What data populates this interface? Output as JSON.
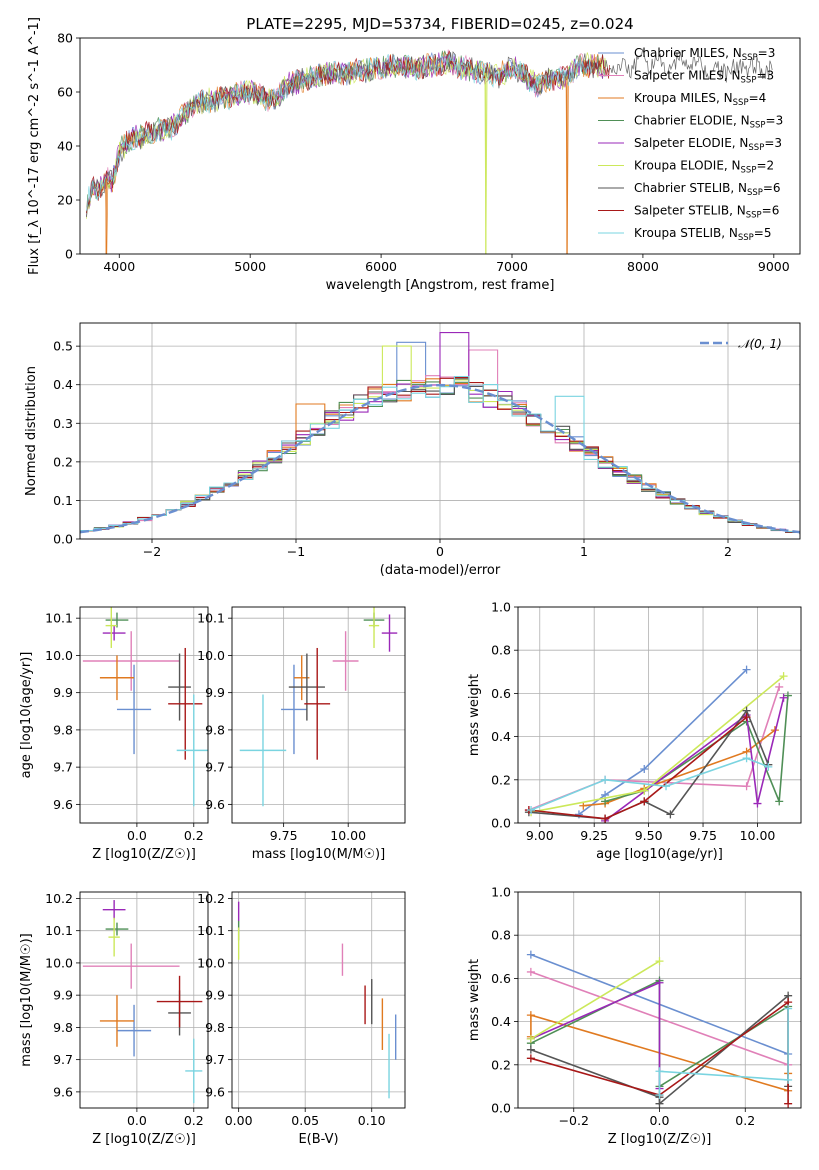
{
  "title": "PLATE=2295, MJD=53734, FIBERID=0245, z=0.024",
  "colors": {
    "c_ch_miles": "#6a8fd0",
    "c_sa_miles": "#e080b8",
    "c_kr_miles": "#e07a20",
    "c_ch_elodie": "#4f8f56",
    "c_sa_elodie": "#9a28b8",
    "c_kr_elodie": "#cce85a",
    "c_ch_stelib": "#555555",
    "c_sa_stelib": "#a81818",
    "c_kr_stelib": "#7ad4e0"
  },
  "chart_data": [
    {
      "type": "line",
      "id": "spectrum",
      "title": "PLATE=2295, MJD=53734, FIBERID=0245, z=0.024",
      "xlabel": "wavelength [Angstrom, rest frame]",
      "ylabel": "Flux [f_λ 10^-17 erg cm^-2 s^-1 A^-1]",
      "xlim": [
        3700,
        9200
      ],
      "ylim": [
        0,
        80
      ],
      "xticks": [
        4000,
        5000,
        6000,
        7000,
        8000,
        9000
      ],
      "yticks": [
        0,
        20,
        40,
        60,
        80
      ],
      "legend": "upper right",
      "series": [
        {
          "name": "Chabrier MILES, N_SSP=3",
          "color": "#6a8fd0"
        },
        {
          "name": "Salpeter MILES, N_SSP=3",
          "color": "#e080b8"
        },
        {
          "name": "Kroupa MILES, N_SSP=4",
          "color": "#e07a20"
        },
        {
          "name": "Chabrier ELODIE, N_SSP=3",
          "color": "#4f8f56"
        },
        {
          "name": "Salpeter ELODIE, N_SSP=3",
          "color": "#9a28b8"
        },
        {
          "name": "Kroupa ELODIE, N_SSP=2",
          "color": "#cce85a"
        },
        {
          "name": "Chabrier STELIB, N_SSP=6",
          "color": "#555555"
        },
        {
          "name": "Salpeter STELIB, N_SSP=6",
          "color": "#a81818"
        },
        {
          "name": "Kroupa STELIB, N_SSP=5",
          "color": "#7ad4e0"
        }
      ],
      "continuum": {
        "x": [
          3750,
          3800,
          3850,
          3900,
          3950,
          4000,
          4100,
          4200,
          4300,
          4400,
          4500,
          4600,
          4800,
          5000,
          5150,
          5200,
          5300,
          5500,
          5700,
          5900,
          6100,
          6300,
          6500,
          6700,
          6900,
          7000,
          7100,
          7200,
          7300,
          7400,
          7500,
          7600,
          7800,
          8000,
          8200,
          8400,
          8600,
          8800,
          9000
        ],
        "y": [
          18,
          25,
          24,
          28,
          27,
          38,
          43,
          44,
          46,
          47,
          52,
          56,
          58,
          60,
          57,
          58,
          63,
          66,
          67,
          68,
          70,
          69,
          71,
          68,
          66,
          69,
          66,
          62,
          65,
          65,
          69,
          70,
          69,
          71,
          70,
          71,
          68,
          69,
          68
        ]
      },
      "dropouts": [
        {
          "x": 3900,
          "color": "#e07a20"
        },
        {
          "x": 6800,
          "color": "#cce85a"
        },
        {
          "x": 7420,
          "color": "#e07a20"
        }
      ]
    },
    {
      "type": "histogram",
      "id": "residuals",
      "xlabel": "(data-model)/error",
      "ylabel": "Normed distribution",
      "xlim": [
        -2.5,
        2.5
      ],
      "ylim": [
        0,
        0.56
      ],
      "xticks": [
        -2,
        -1,
        0,
        1,
        2
      ],
      "xticklabels": [
        "−2",
        "−1",
        "0",
        "1",
        "2"
      ],
      "yticks": [
        0.0,
        0.1,
        0.2,
        0.3,
        0.4,
        0.5
      ],
      "bin_width": 0.1,
      "reference": {
        "name": "𝒩(0, 1)",
        "type": "normal",
        "mean": 0,
        "sigma": 1,
        "color": "#6a8fd0",
        "style": "dashed"
      },
      "legend": "upper right",
      "series_colors": [
        "#6a8fd0",
        "#e080b8",
        "#e07a20",
        "#4f8f56",
        "#9a28b8",
        "#cce85a",
        "#555555",
        "#a81818",
        "#7ad4e0"
      ],
      "highlight_bins": [
        {
          "series": 0,
          "x": -0.2,
          "value": 0.51
        },
        {
          "series": 4,
          "x": 0.1,
          "value": 0.535
        },
        {
          "series": 5,
          "x": -0.3,
          "value": 0.5
        },
        {
          "series": 1,
          "x": 0.3,
          "value": 0.49
        },
        {
          "series": 2,
          "x": -0.9,
          "value": 0.35
        },
        {
          "series": 8,
          "x": 0.9,
          "value": 0.37
        }
      ]
    },
    {
      "type": "errorbar",
      "id": "age_vs_Z",
      "xlabel": "Z [log10(Z/Z☉)]",
      "ylabel": "age [log10(age/yr)]",
      "xlim": [
        -0.2,
        0.25
      ],
      "ylim": [
        9.55,
        10.13
      ],
      "xticks": [
        0.0,
        0.2
      ],
      "xticklabels": [
        "0.0",
        "0.2"
      ],
      "yticks": [
        9.6,
        9.7,
        9.8,
        9.9,
        10.0,
        10.1
      ],
      "points": [
        {
          "c": "#6a8fd0",
          "x": -0.01,
          "y": 9.855,
          "xerr": 0.06,
          "yerr": 0.12
        },
        {
          "c": "#e080b8",
          "x": -0.02,
          "y": 9.985,
          "xerr": 0.17,
          "yerr": 0.08
        },
        {
          "c": "#e07a20",
          "x": -0.07,
          "y": 9.94,
          "xerr": 0.06,
          "yerr": 0.06
        },
        {
          "c": "#4f8f56",
          "x": -0.07,
          "y": 10.095,
          "xerr": 0.04,
          "yerr": 0.02
        },
        {
          "c": "#9a28b8",
          "x": -0.08,
          "y": 10.06,
          "xerr": 0.04,
          "yerr": 0.02
        },
        {
          "c": "#cce85a",
          "x": -0.09,
          "y": 10.08,
          "xerr": 0.02,
          "yerr": 0.06
        },
        {
          "c": "#555555",
          "x": 0.15,
          "y": 9.915,
          "xerr": 0.04,
          "yerr": 0.09
        },
        {
          "c": "#a81818",
          "x": 0.17,
          "y": 9.87,
          "xerr": 0.06,
          "yerr": 0.15
        },
        {
          "c": "#7ad4e0",
          "x": 0.2,
          "y": 9.745,
          "xerr": 0.06,
          "yerr": 0.15
        }
      ]
    },
    {
      "type": "errorbar",
      "id": "age_vs_mass",
      "xlabel": "mass [log10(M/M☉)]",
      "ylabel": "",
      "xlim": [
        9.55,
        10.22
      ],
      "ylim": [
        9.55,
        10.13
      ],
      "xticks": [
        9.75,
        10.0
      ],
      "xticklabels": [
        "9.75",
        "10.00"
      ],
      "yticks": [
        9.6,
        9.7,
        9.8,
        9.9,
        10.0,
        10.1
      ],
      "points": [
        {
          "c": "#6a8fd0",
          "x": 9.79,
          "y": 9.855,
          "xerr": 0.05,
          "yerr": 0.12
        },
        {
          "c": "#e080b8",
          "x": 9.99,
          "y": 9.985,
          "xerr": 0.05,
          "yerr": 0.08
        },
        {
          "c": "#e07a20",
          "x": 9.82,
          "y": 9.94,
          "xerr": 0.03,
          "yerr": 0.06
        },
        {
          "c": "#4f8f56",
          "x": 10.1,
          "y": 10.095,
          "xerr": 0.04,
          "yerr": 0.02
        },
        {
          "c": "#9a28b8",
          "x": 10.16,
          "y": 10.06,
          "xerr": 0.03,
          "yerr": 0.05
        },
        {
          "c": "#cce85a",
          "x": 10.1,
          "y": 10.08,
          "xerr": 0.02,
          "yerr": 0.06
        },
        {
          "c": "#555555",
          "x": 9.84,
          "y": 9.915,
          "xerr": 0.07,
          "yerr": 0.09
        },
        {
          "c": "#a81818",
          "x": 9.88,
          "y": 9.87,
          "xerr": 0.05,
          "yerr": 0.15
        },
        {
          "c": "#7ad4e0",
          "x": 9.67,
          "y": 9.745,
          "xerr": 0.09,
          "yerr": 0.15
        }
      ]
    },
    {
      "type": "line",
      "id": "mw_vs_age",
      "xlabel": "age [log10(age/yr)]",
      "ylabel": "mass weight",
      "xlim": [
        8.9,
        10.2
      ],
      "ylim": [
        0,
        1.0
      ],
      "xticks": [
        9.0,
        9.25,
        9.5,
        9.75,
        10.0
      ],
      "xticklabels": [
        "9.00",
        "9.25",
        "9.50",
        "9.75",
        "10.00"
      ],
      "yticks": [
        0.0,
        0.2,
        0.4,
        0.6,
        0.8,
        1.0
      ],
      "series": [
        {
          "c": "#6a8fd0",
          "x": [
            9.18,
            9.3,
            9.48,
            9.95
          ],
          "y": [
            0.04,
            0.13,
            0.25,
            0.71
          ]
        },
        {
          "c": "#e080b8",
          "x": [
            8.95,
            9.3,
            9.95,
            10.1
          ],
          "y": [
            0.06,
            0.2,
            0.17,
            0.63
          ]
        },
        {
          "c": "#e07a20",
          "x": [
            9.2,
            9.3,
            9.48,
            9.95,
            10.08
          ],
          "y": [
            0.08,
            0.09,
            0.16,
            0.33,
            0.43
          ]
        },
        {
          "c": "#4f8f56",
          "x": [
            9.3,
            9.48,
            9.95,
            10.1,
            10.14
          ],
          "y": [
            0.1,
            0.15,
            0.47,
            0.1,
            0.59
          ]
        },
        {
          "c": "#9a28b8",
          "x": [
            9.3,
            9.95,
            10.0,
            10.12
          ],
          "y": [
            0.01,
            0.5,
            0.09,
            0.58
          ]
        },
        {
          "c": "#cce85a",
          "x": [
            8.96,
            9.48,
            10.12
          ],
          "y": [
            0.05,
            0.15,
            0.68
          ]
        },
        {
          "c": "#555555",
          "x": [
            8.95,
            9.3,
            9.48,
            9.6,
            9.95,
            10.05
          ],
          "y": [
            0.05,
            0.02,
            0.1,
            0.04,
            0.52,
            0.27
          ]
        },
        {
          "c": "#a81818",
          "x": [
            8.95,
            9.3,
            9.48,
            9.95
          ],
          "y": [
            0.06,
            0.02,
            0.1,
            0.49
          ]
        },
        {
          "c": "#7ad4e0",
          "x": [
            8.96,
            9.3,
            9.58,
            9.95,
            10.05
          ],
          "y": [
            0.06,
            0.2,
            0.17,
            0.3,
            0.26
          ]
        }
      ]
    },
    {
      "type": "errorbar",
      "id": "mass_vs_Z",
      "xlabel": "Z [log10(Z/Z☉)]",
      "ylabel": "mass [log10(M/M☉)]",
      "xlim": [
        -0.2,
        0.25
      ],
      "ylim": [
        9.55,
        10.22
      ],
      "xticks": [
        0.0,
        0.2
      ],
      "xticklabels": [
        "0.0",
        "0.2"
      ],
      "yticks": [
        9.6,
        9.7,
        9.8,
        9.9,
        10.0,
        10.1,
        10.2
      ],
      "points": [
        {
          "c": "#6a8fd0",
          "x": -0.01,
          "y": 9.79,
          "xerr": 0.06,
          "yerr": 0.08
        },
        {
          "c": "#e080b8",
          "x": -0.02,
          "y": 9.99,
          "xerr": 0.17,
          "yerr": 0.07
        },
        {
          "c": "#e07a20",
          "x": -0.07,
          "y": 9.82,
          "xerr": 0.06,
          "yerr": 0.08
        },
        {
          "c": "#4f8f56",
          "x": -0.07,
          "y": 10.105,
          "xerr": 0.04,
          "yerr": 0.02
        },
        {
          "c": "#9a28b8",
          "x": -0.08,
          "y": 10.165,
          "xerr": 0.04,
          "yerr": 0.03
        },
        {
          "c": "#cce85a",
          "x": -0.08,
          "y": 10.08,
          "xerr": 0.02,
          "yerr": 0.06
        },
        {
          "c": "#555555",
          "x": 0.15,
          "y": 9.845,
          "xerr": 0.04,
          "yerr": 0.07
        },
        {
          "c": "#a81818",
          "x": 0.15,
          "y": 9.88,
          "xerr": 0.08,
          "yerr": 0.08
        },
        {
          "c": "#7ad4e0",
          "x": 0.2,
          "y": 9.665,
          "xerr": 0.03,
          "yerr": 0.1
        }
      ]
    },
    {
      "type": "errorbar",
      "id": "mass_vs_ebv",
      "xlabel": "E(B-V)",
      "ylabel": "",
      "xlim": [
        -0.005,
        0.125
      ],
      "ylim": [
        9.55,
        10.22
      ],
      "xticks": [
        0.0,
        0.05,
        0.1
      ],
      "xticklabels": [
        "0.00",
        "0.05",
        "0.10"
      ],
      "yticks": [
        9.6,
        9.7,
        9.8,
        9.9,
        10.0,
        10.1,
        10.2
      ],
      "points": [
        {
          "c": "#6a8fd0",
          "x": 0.118,
          "y": 9.77,
          "xerr": 0,
          "yerr": 0.07
        },
        {
          "c": "#e080b8",
          "x": 0.078,
          "y": 10.01,
          "xerr": 0,
          "yerr": 0.05
        },
        {
          "c": "#e07a20",
          "x": 0.108,
          "y": 9.81,
          "xerr": 0,
          "yerr": 0.08
        },
        {
          "c": "#4f8f56",
          "x": 0.0,
          "y": 10.1,
          "xerr": 0,
          "yerr": 0.03
        },
        {
          "c": "#9a28b8",
          "x": 0.0,
          "y": 10.16,
          "xerr": 0,
          "yerr": 0.03
        },
        {
          "c": "#cce85a",
          "x": 0.0,
          "y": 10.06,
          "xerr": 0,
          "yerr": 0.05
        },
        {
          "c": "#555555",
          "x": 0.1,
          "y": 9.88,
          "xerr": 0,
          "yerr": 0.07
        },
        {
          "c": "#a81818",
          "x": 0.095,
          "y": 9.87,
          "xerr": 0,
          "yerr": 0.06
        },
        {
          "c": "#7ad4e0",
          "x": 0.113,
          "y": 9.68,
          "xerr": 0,
          "yerr": 0.1
        }
      ]
    },
    {
      "type": "line",
      "id": "mw_vs_Z",
      "xlabel": "Z [log10(Z/Z☉)]",
      "ylabel": "mass weight",
      "xlim": [
        -0.33,
        0.33
      ],
      "ylim": [
        0,
        1.0
      ],
      "xticks": [
        -0.2,
        0.0,
        0.2
      ],
      "xticklabels": [
        "−0.2",
        "0.0",
        "0.2"
      ],
      "yticks": [
        0.0,
        0.2,
        0.4,
        0.6,
        0.8,
        1.0
      ],
      "series": [
        {
          "c": "#6a8fd0",
          "x": [
            -0.3,
            0.3
          ],
          "y": [
            0.71,
            0.25
          ]
        },
        {
          "c": "#e080b8",
          "x": [
            -0.3,
            0.3
          ],
          "y": [
            0.63,
            0.2
          ]
        },
        {
          "c": "#e07a20",
          "x": [
            -0.3,
            -0.3,
            0.3,
            0.3
          ],
          "y": [
            0.33,
            0.43,
            0.08,
            0.16
          ]
        },
        {
          "c": "#4f8f56",
          "x": [
            -0.3,
            0.0,
            0.0,
            0.3
          ],
          "y": [
            0.3,
            0.59,
            0.1,
            0.47
          ]
        },
        {
          "c": "#9a28b8",
          "x": [
            -0.3,
            0.0,
            0.0
          ],
          "y": [
            0.32,
            0.58,
            0.09
          ]
        },
        {
          "c": "#cce85a",
          "x": [
            -0.3,
            0.0
          ],
          "y": [
            0.32,
            0.68
          ]
        },
        {
          "c": "#555555",
          "x": [
            -0.3,
            0.0,
            0.0,
            0.3,
            0.3
          ],
          "y": [
            0.27,
            0.05,
            0.02,
            0.52,
            0.1
          ]
        },
        {
          "c": "#a81818",
          "x": [
            -0.3,
            0.0,
            0.3,
            0.3
          ],
          "y": [
            0.23,
            0.06,
            0.49,
            0.02
          ]
        },
        {
          "c": "#7ad4e0",
          "x": [
            0.0,
            0.0,
            0.3,
            0.3
          ],
          "y": [
            0.06,
            0.17,
            0.13,
            0.46
          ]
        }
      ]
    }
  ]
}
